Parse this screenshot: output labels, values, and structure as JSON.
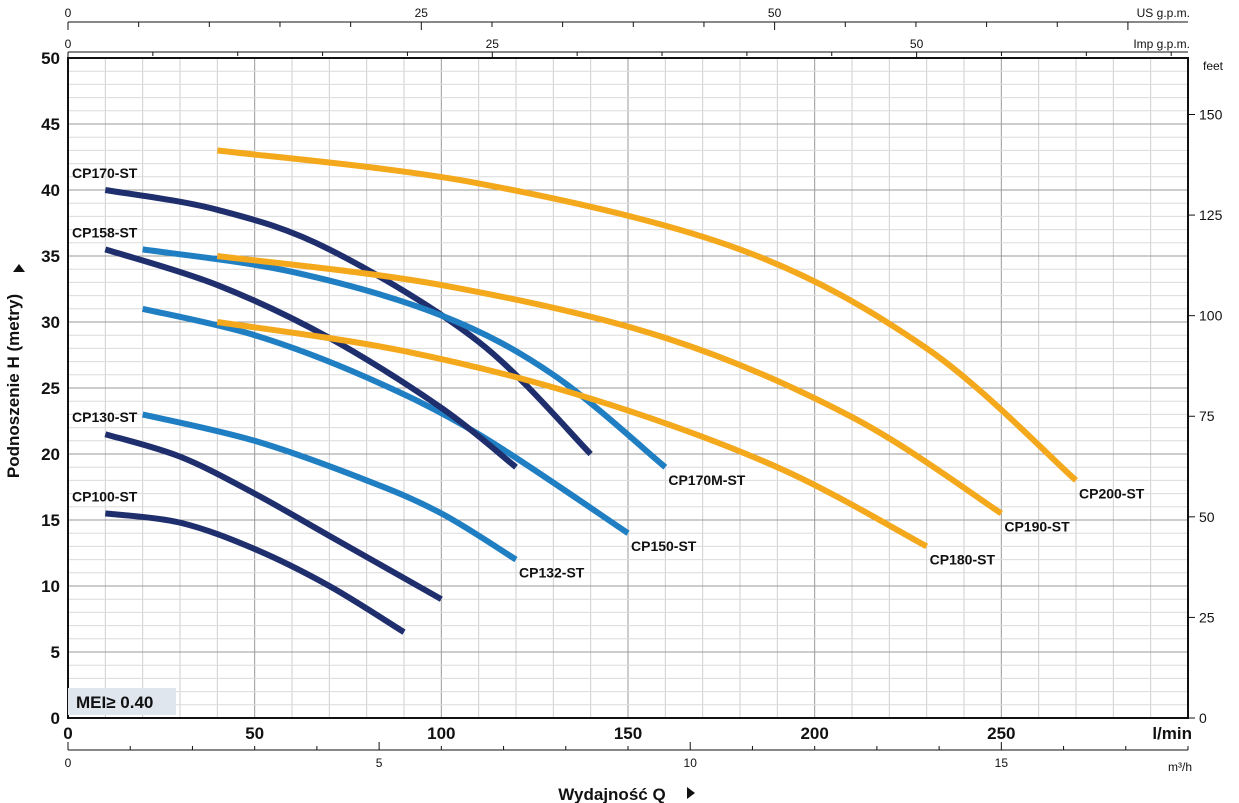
{
  "chart_data": {
    "type": "line",
    "ylabel": "Podnoszenie H  (metry)",
    "xlabel": "Wydajność Q",
    "x_unit_main": "l/min",
    "x_unit_secondary": "m³/h",
    "y_unit_right": "feet",
    "top_axis_1_unit": "US g.p.m.",
    "top_axis_2_unit": "Imp g.p.m.",
    "badge": "MEI≥ 0.40",
    "xlim": [
      0,
      300
    ],
    "ylim": [
      0,
      50
    ],
    "x_ticks": [
      0,
      50,
      100,
      150,
      200,
      250
    ],
    "y_ticks": [
      0,
      5,
      10,
      15,
      20,
      25,
      30,
      35,
      40,
      45,
      50
    ],
    "x_ticks_m3h": [
      0,
      5,
      10,
      15
    ],
    "y_ticks_feet": [
      0,
      25,
      50,
      75,
      100,
      125,
      150
    ],
    "x_ticks_us_gpm": [
      0,
      25,
      50
    ],
    "x_ticks_imp_gpm": [
      0,
      25,
      50
    ],
    "grid": true,
    "colors": {
      "dark": "#1f2f6e",
      "mid": "#1f7fc2",
      "orange": "#f4a81c"
    },
    "series": [
      {
        "name": "CP100-ST",
        "color": "dark",
        "x": [
          10,
          30,
          50,
          70,
          90
        ],
        "y": [
          15.5,
          14.8,
          12.8,
          10.0,
          6.5
        ]
      },
      {
        "name": "CP130-ST",
        "color": "dark",
        "x": [
          10,
          30,
          50,
          70,
          100
        ],
        "y": [
          21.5,
          19.8,
          17.0,
          13.8,
          9.0
        ]
      },
      {
        "name": "CP132-ST",
        "color": "mid",
        "x": [
          20,
          50,
          80,
          100,
          120
        ],
        "y": [
          23.0,
          21.0,
          18.0,
          15.5,
          12.0
        ]
      },
      {
        "name": "CP150-ST",
        "color": "mid",
        "x": [
          20,
          50,
          80,
          110,
          150
        ],
        "y": [
          31.0,
          29.0,
          25.8,
          21.5,
          14.0
        ]
      },
      {
        "name": "CP158-ST",
        "color": "dark",
        "x": [
          10,
          40,
          70,
          100,
          120
        ],
        "y": [
          35.5,
          32.8,
          28.8,
          23.5,
          19.0
        ]
      },
      {
        "name": "CP170-ST",
        "color": "dark",
        "x": [
          10,
          40,
          70,
          110,
          140
        ],
        "y": [
          40.0,
          38.5,
          35.5,
          28.5,
          20.0
        ]
      },
      {
        "name": "CP170M-ST",
        "color": "mid",
        "x": [
          20,
          60,
          100,
          130,
          160
        ],
        "y": [
          35.5,
          33.8,
          30.5,
          26.0,
          19.0
        ]
      },
      {
        "name": "CP180-ST",
        "color": "orange",
        "x": [
          40,
          90,
          140,
          190,
          230
        ],
        "y": [
          30.0,
          27.8,
          24.2,
          19.0,
          13.0
        ]
      },
      {
        "name": "CP190-ST",
        "color": "orange",
        "x": [
          40,
          100,
          160,
          210,
          250
        ],
        "y": [
          35.0,
          32.8,
          28.8,
          22.8,
          15.5
        ]
      },
      {
        "name": "CP200-ST",
        "color": "orange",
        "x": [
          40,
          110,
          180,
          230,
          270
        ],
        "y": [
          43.0,
          40.5,
          35.5,
          28.0,
          18.0
        ]
      }
    ]
  }
}
